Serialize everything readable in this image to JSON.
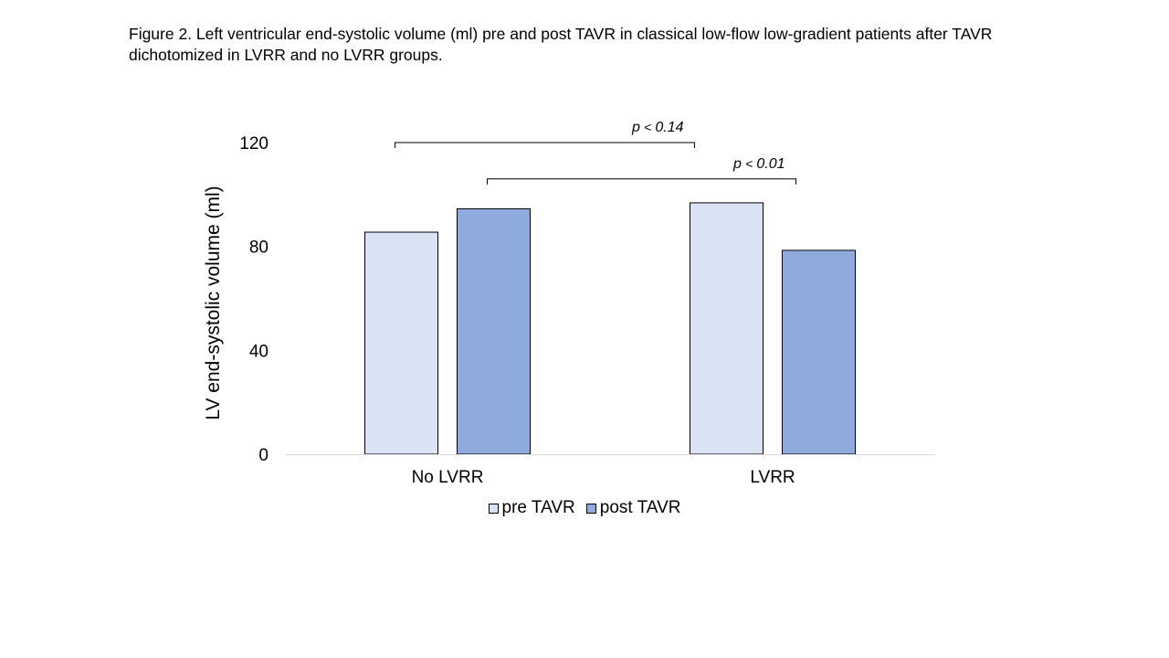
{
  "caption": {
    "line1": "Figure 2. Left ventricular end-systolic volume (ml) pre and post TAVR in classical low-flow low-gradient patients after TAVR",
    "line2": "dichotomized in LVRR and no LVRR groups."
  },
  "chart_data": {
    "type": "bar",
    "categories": [
      "No LVRR",
      "LVRR"
    ],
    "series": [
      {
        "name": "pre TAVR",
        "values": [
          85.5,
          96.8
        ],
        "color": "#dae3f3"
      },
      {
        "name": "post TAVR",
        "values": [
          94.5,
          78.5
        ],
        "color": "#8faadc"
      }
    ],
    "ylabel": "LV end-systolic volume (ml)",
    "ylim": [
      0,
      120
    ],
    "yticks": [
      "0",
      "40",
      "80",
      "120"
    ],
    "ytick_values": [
      0,
      40,
      80,
      120
    ],
    "grid": false,
    "legend": "bottom-center",
    "annotations": [
      {
        "p": "p",
        "lt": "<",
        "value": "0.14",
        "from": {
          "category": 0,
          "series": 0
        },
        "to": {
          "category": 1,
          "series": 0
        },
        "level": 120
      },
      {
        "p": "p",
        "lt": "<",
        "value": "0.01",
        "from": {
          "category": 0,
          "series": 1
        },
        "to": {
          "category": 1,
          "series": 1
        },
        "level": 106
      }
    ]
  }
}
